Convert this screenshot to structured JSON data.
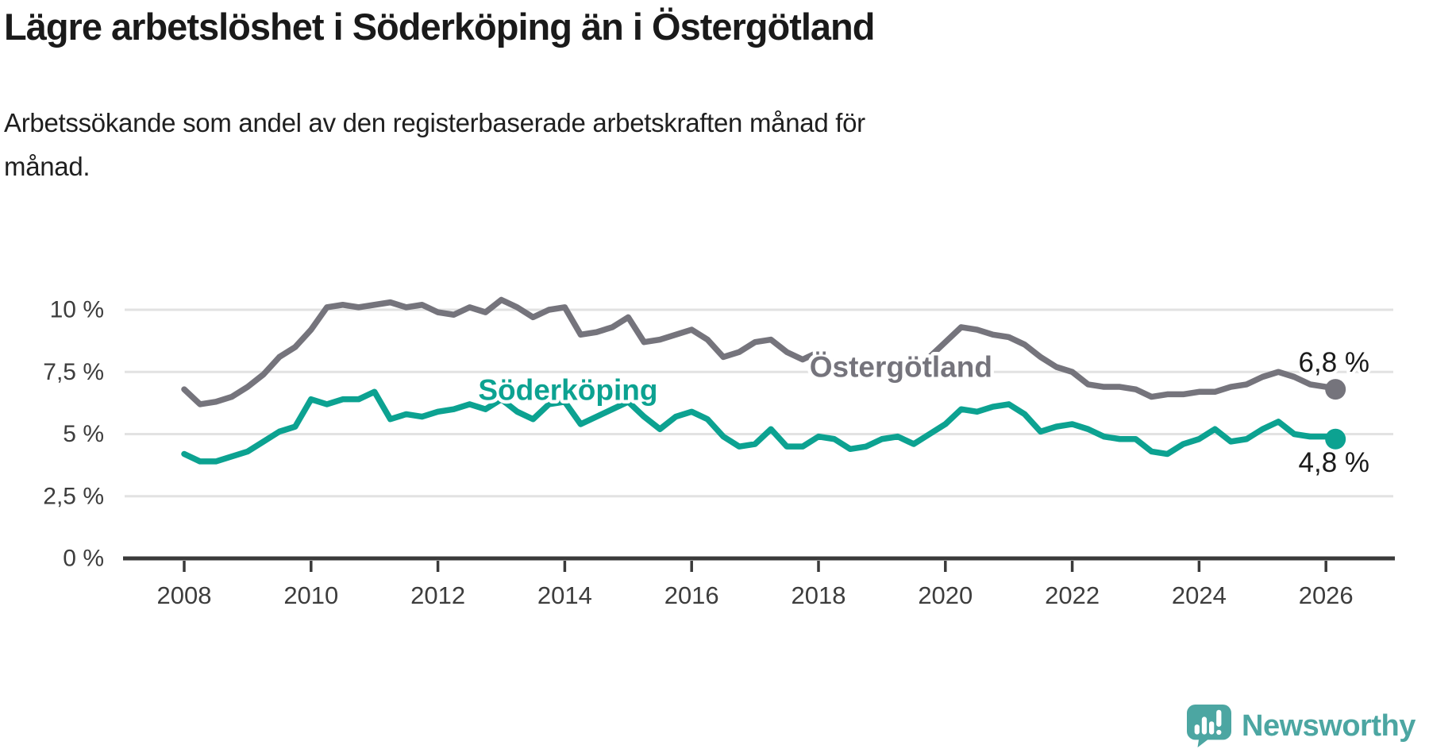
{
  "title": "Lägre arbetslöshet i Söderköping än i Östergötland",
  "subtitle": "Arbetssökande som andel av den registerbaserade arbetskraften månad för\nmånad.",
  "colors": {
    "ostergotland_line": "#75747C",
    "soderkoping_line": "#0CA291",
    "gridline": "#E2E2E2",
    "axis": "#3A3A3A",
    "tick_text": "#3D3D3D",
    "value_label_text": "#1A1A1A",
    "brand_teal": "#4CA6A2"
  },
  "chart_data": {
    "type": "line",
    "unit": "percent",
    "grid": true,
    "xlim": [
      2007.05,
      2027.05
    ],
    "ylim": [
      0,
      10.8
    ],
    "x_axis": {
      "ticks": [
        2008,
        2010,
        2012,
        2014,
        2016,
        2018,
        2020,
        2022,
        2024,
        2026
      ]
    },
    "y_axis": {
      "ticks": [
        {
          "value": 10,
          "label": "10 %"
        },
        {
          "value": 7.5,
          "label": "7,5 %"
        },
        {
          "value": 5,
          "label": "5 %"
        },
        {
          "value": 2.5,
          "label": "2,5 %"
        },
        {
          "value": 0,
          "label": "0 %"
        }
      ]
    },
    "series": [
      {
        "name": "Östergötland",
        "color": "#75747C",
        "x_start": 2008.0,
        "x_step_years": 0.25,
        "values": [
          6.8,
          6.2,
          6.3,
          6.5,
          6.9,
          7.4,
          8.1,
          8.5,
          9.2,
          10.1,
          10.2,
          10.1,
          10.2,
          10.3,
          10.1,
          10.2,
          9.9,
          9.8,
          10.1,
          9.9,
          10.4,
          10.1,
          9.7,
          10.0,
          10.1,
          9.0,
          9.1,
          9.3,
          9.7,
          8.7,
          8.8,
          9.0,
          9.2,
          8.8,
          8.1,
          8.3,
          8.7,
          8.8,
          8.3,
          8.0,
          8.3,
          7.8,
          7.5,
          7.4,
          7.6,
          7.5,
          7.7,
          8.1,
          8.7,
          9.3,
          9.2,
          9.0,
          8.9,
          8.6,
          8.1,
          7.7,
          7.5,
          7.0,
          6.9,
          6.9,
          6.8,
          6.5,
          6.6,
          6.6,
          6.7,
          6.7,
          6.9,
          7.0,
          7.3,
          7.5,
          7.3,
          7.0,
          6.9
        ],
        "end_point": {
          "x": 2026.15,
          "value": 6.8,
          "label": "6,8 %"
        },
        "name_label_anchor": {
          "x": 2019.3,
          "y": 7.7
        }
      },
      {
        "name": "Söderköping",
        "color": "#0CA291",
        "x_start": 2008.0,
        "x_step_years": 0.25,
        "values": [
          4.2,
          3.9,
          3.9,
          4.1,
          4.3,
          4.7,
          5.1,
          5.3,
          6.4,
          6.2,
          6.4,
          6.4,
          6.7,
          5.6,
          5.8,
          5.7,
          5.9,
          6.0,
          6.2,
          6.0,
          6.4,
          5.9,
          5.6,
          6.2,
          6.3,
          5.4,
          5.7,
          6.0,
          6.3,
          5.7,
          5.2,
          5.7,
          5.9,
          5.6,
          4.9,
          4.5,
          4.6,
          5.2,
          4.5,
          4.5,
          4.9,
          4.8,
          4.4,
          4.5,
          4.8,
          4.9,
          4.6,
          5.0,
          5.4,
          6.0,
          5.9,
          6.1,
          6.2,
          5.8,
          5.1,
          5.3,
          5.4,
          5.2,
          4.9,
          4.8,
          4.8,
          4.3,
          4.2,
          4.6,
          4.8,
          5.2,
          4.7,
          4.8,
          5.2,
          5.5,
          5.0,
          4.9,
          4.9
        ],
        "end_point": {
          "x": 2026.15,
          "value": 4.8,
          "label": "4,8 %"
        },
        "name_label_anchor": {
          "x": 2014.05,
          "y": 6.78
        }
      }
    ]
  },
  "footer": {
    "brand_text": "Newsworthy"
  }
}
